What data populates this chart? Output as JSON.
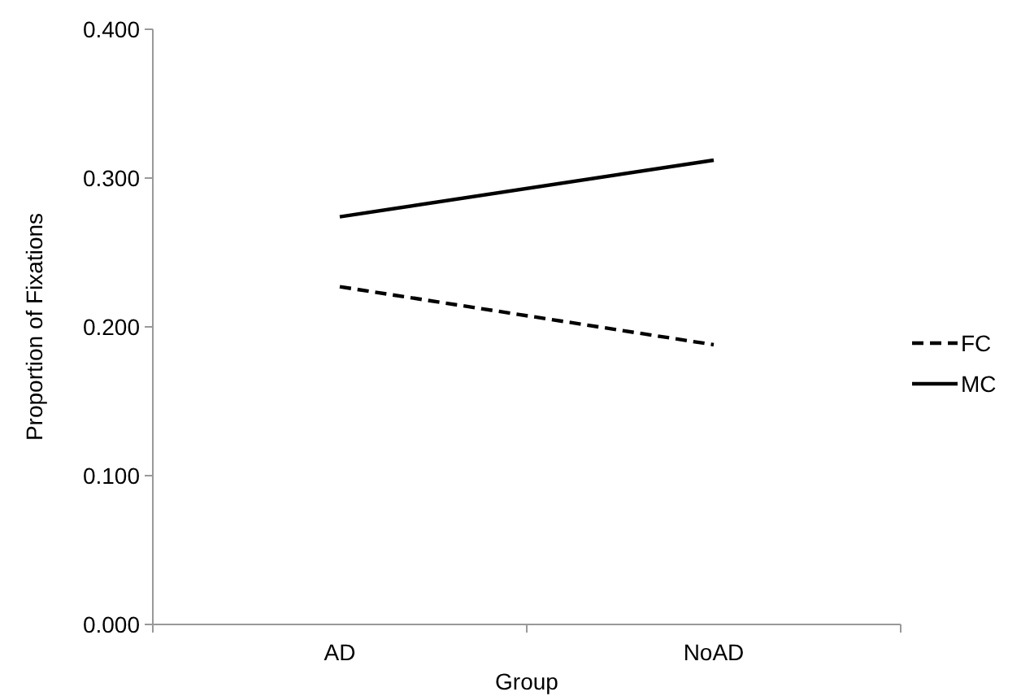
{
  "chart_data": {
    "type": "line",
    "xlabel": "Group",
    "ylabel": "Proportion of Fixations",
    "categories": [
      "AD",
      "NoAD"
    ],
    "series": [
      {
        "name": "FC",
        "color": "#000000",
        "values": [
          0.227,
          0.188
        ],
        "line_style": "dashed"
      },
      {
        "name": "MC",
        "color": "#000000",
        "values": [
          0.274,
          0.312
        ],
        "line_style": "solid"
      }
    ],
    "ylim": [
      0,
      0.4
    ],
    "yticks": [
      {
        "value": 0,
        "label": "0.000"
      },
      {
        "value": 0.1,
        "label": "0.100"
      },
      {
        "value": 0.2,
        "label": "0.200"
      },
      {
        "value": 0.3,
        "label": "0.300"
      },
      {
        "value": 0.4,
        "label": "0.400"
      }
    ],
    "grid": false,
    "legend": "right",
    "marker": "none"
  }
}
